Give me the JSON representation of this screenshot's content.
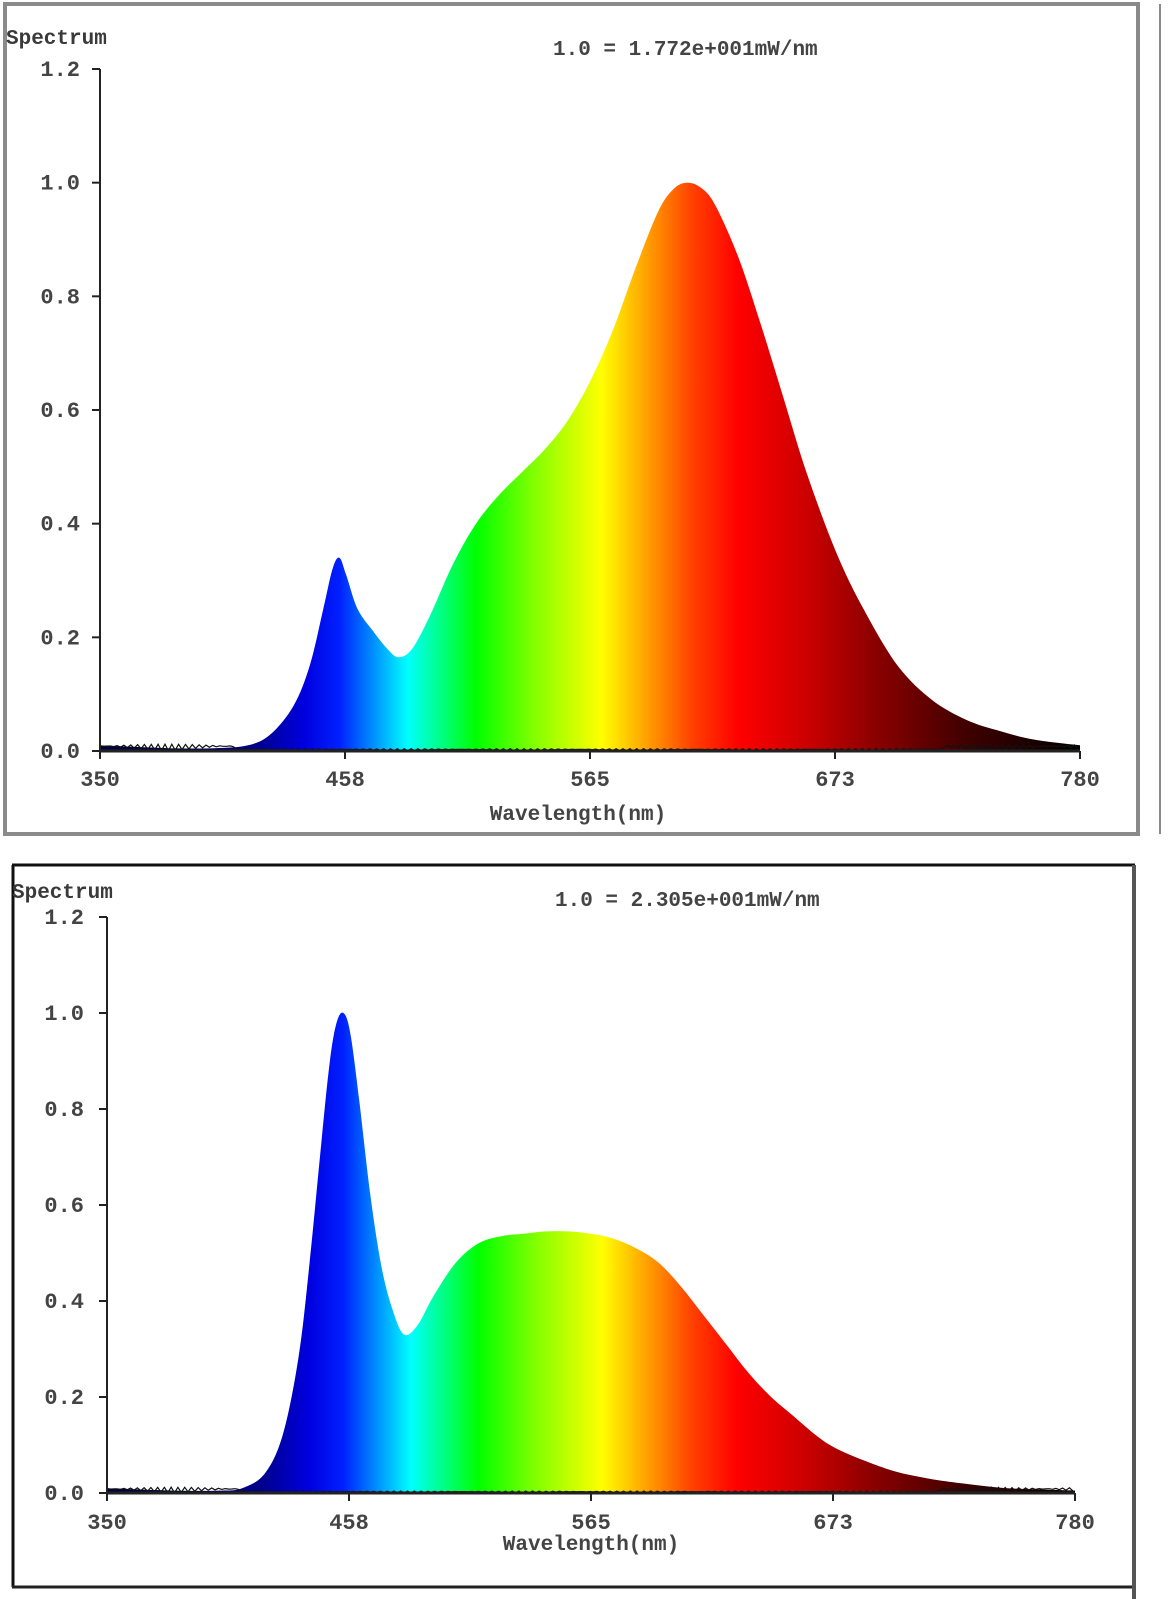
{
  "chart_data": [
    {
      "type": "area",
      "title": "Spectrum",
      "annotation": "1.0 = 1.772e+001mW/nm",
      "xlabel": "Wavelength(nm)",
      "ylabel": "Spectrum",
      "xlim": [
        350,
        780
      ],
      "ylim": [
        0,
        1.2
      ],
      "x_ticks": [
        "350",
        "458",
        "565",
        "673",
        "780"
      ],
      "y_ticks": [
        "0.0",
        "0.2",
        "0.4",
        "0.6",
        "0.8",
        "1.0",
        "1.2"
      ],
      "grid": false,
      "fill": "visible-spectrum gradient",
      "x": [
        350,
        380,
        400,
        415,
        425,
        435,
        442,
        448,
        452,
        455,
        458,
        463,
        470,
        476,
        481,
        487,
        495,
        505,
        515,
        525,
        535,
        545,
        555,
        565,
        575,
        585,
        595,
        602,
        608,
        614,
        620,
        630,
        640,
        650,
        660,
        673,
        685,
        700,
        715,
        730,
        745,
        760,
        780
      ],
      "values": [
        0.01,
        0.005,
        0.005,
        0.01,
        0.03,
        0.08,
        0.15,
        0.25,
        0.32,
        0.34,
        0.31,
        0.25,
        0.21,
        0.18,
        0.165,
        0.18,
        0.24,
        0.33,
        0.4,
        0.45,
        0.49,
        0.53,
        0.58,
        0.65,
        0.74,
        0.85,
        0.95,
        0.99,
        1.0,
        0.99,
        0.96,
        0.87,
        0.75,
        0.62,
        0.49,
        0.35,
        0.25,
        0.15,
        0.09,
        0.055,
        0.035,
        0.02,
        0.01
      ]
    },
    {
      "type": "area",
      "title": "Spectrum",
      "annotation": "1.0 = 2.305e+001mW/nm",
      "xlabel": "Wavelength(nm)",
      "ylabel": "Spectrum",
      "xlim": [
        350,
        780
      ],
      "ylim": [
        0,
        1.2
      ],
      "x_ticks": [
        "350",
        "458",
        "565",
        "673",
        "780"
      ],
      "y_ticks": [
        "0.0",
        "0.2",
        "0.4",
        "0.6",
        "0.8",
        "1.0",
        "1.2"
      ],
      "grid": false,
      "fill": "visible-spectrum gradient",
      "x": [
        350,
        380,
        400,
        410,
        420,
        428,
        435,
        440,
        445,
        449,
        452,
        455,
        458,
        462,
        467,
        472,
        477,
        482,
        488,
        495,
        505,
        515,
        525,
        535,
        545,
        555,
        565,
        575,
        585,
        595,
        605,
        615,
        625,
        635,
        645,
        655,
        665,
        673,
        685,
        700,
        715,
        730,
        750,
        780
      ],
      "values": [
        0.01,
        0.005,
        0.005,
        0.01,
        0.04,
        0.12,
        0.28,
        0.48,
        0.72,
        0.9,
        0.98,
        1.0,
        0.96,
        0.82,
        0.62,
        0.47,
        0.38,
        0.33,
        0.35,
        0.41,
        0.48,
        0.52,
        0.535,
        0.54,
        0.545,
        0.545,
        0.54,
        0.53,
        0.51,
        0.48,
        0.43,
        0.37,
        0.31,
        0.25,
        0.2,
        0.16,
        0.12,
        0.095,
        0.07,
        0.045,
        0.03,
        0.02,
        0.01,
        0.005
      ]
    }
  ],
  "panels": [
    {
      "title": "Spectrum",
      "annotation": "1.0 = 1.772e+001mW/nm",
      "xlabel": "Wavelength(nm)",
      "x_ticks": [
        "350",
        "458",
        "565",
        "673",
        "780"
      ],
      "y_ticks": [
        "0.0",
        "0.2",
        "0.4",
        "0.6",
        "0.8",
        "1.0",
        "1.2"
      ]
    },
    {
      "title": "Spectrum",
      "annotation": "1.0 = 2.305e+001mW/nm",
      "xlabel": "Wavelength(nm)",
      "x_ticks": [
        "350",
        "458",
        "565",
        "673",
        "780"
      ],
      "y_ticks": [
        "0.0",
        "0.2",
        "0.4",
        "0.6",
        "0.8",
        "1.0",
        "1.2"
      ]
    }
  ],
  "colors": {
    "frame_top": "#8a8a8a",
    "frame_bottom": "#111111",
    "axis": "#222222",
    "text": "#444444",
    "spectrum_stops": [
      "#000080",
      "#0000ff",
      "#00ffff",
      "#00ff00",
      "#ffff00",
      "#ff8000",
      "#ff0000",
      "#8b0000",
      "#000000"
    ]
  }
}
